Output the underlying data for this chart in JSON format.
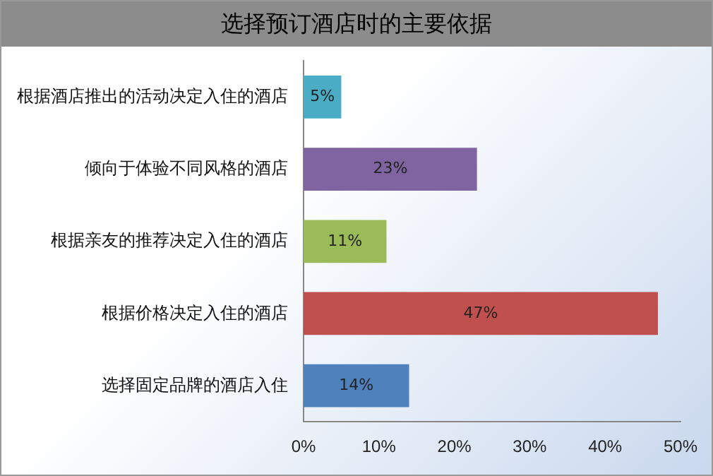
{
  "chart_data": {
    "type": "bar",
    "orientation": "horizontal",
    "title": "选择预订酒店时的主要依据",
    "categories": [
      "根据酒店推出的活动决定入住的酒店",
      "倾向于体验不同风格的酒店",
      "根据亲友的推荐决定入住的酒店",
      "根据价格决定入住的酒店",
      "选择固定品牌的酒店入住"
    ],
    "values": [
      5,
      23,
      11,
      47,
      14
    ],
    "colors": [
      "#4bacc6",
      "#8064a2",
      "#9bbb59",
      "#c0504d",
      "#4f81bd"
    ],
    "value_labels": [
      "5%",
      "23%",
      "11%",
      "47%",
      "14%"
    ],
    "xlim": [
      0,
      50
    ],
    "xticks": [
      {
        "value": 0,
        "label": "0%"
      },
      {
        "value": 10,
        "label": "10%"
      },
      {
        "value": 20,
        "label": "20%"
      },
      {
        "value": 30,
        "label": "30%"
      },
      {
        "value": 40,
        "label": "40%"
      },
      {
        "value": 50,
        "label": "50%"
      }
    ],
    "grid": false,
    "legend": false
  }
}
